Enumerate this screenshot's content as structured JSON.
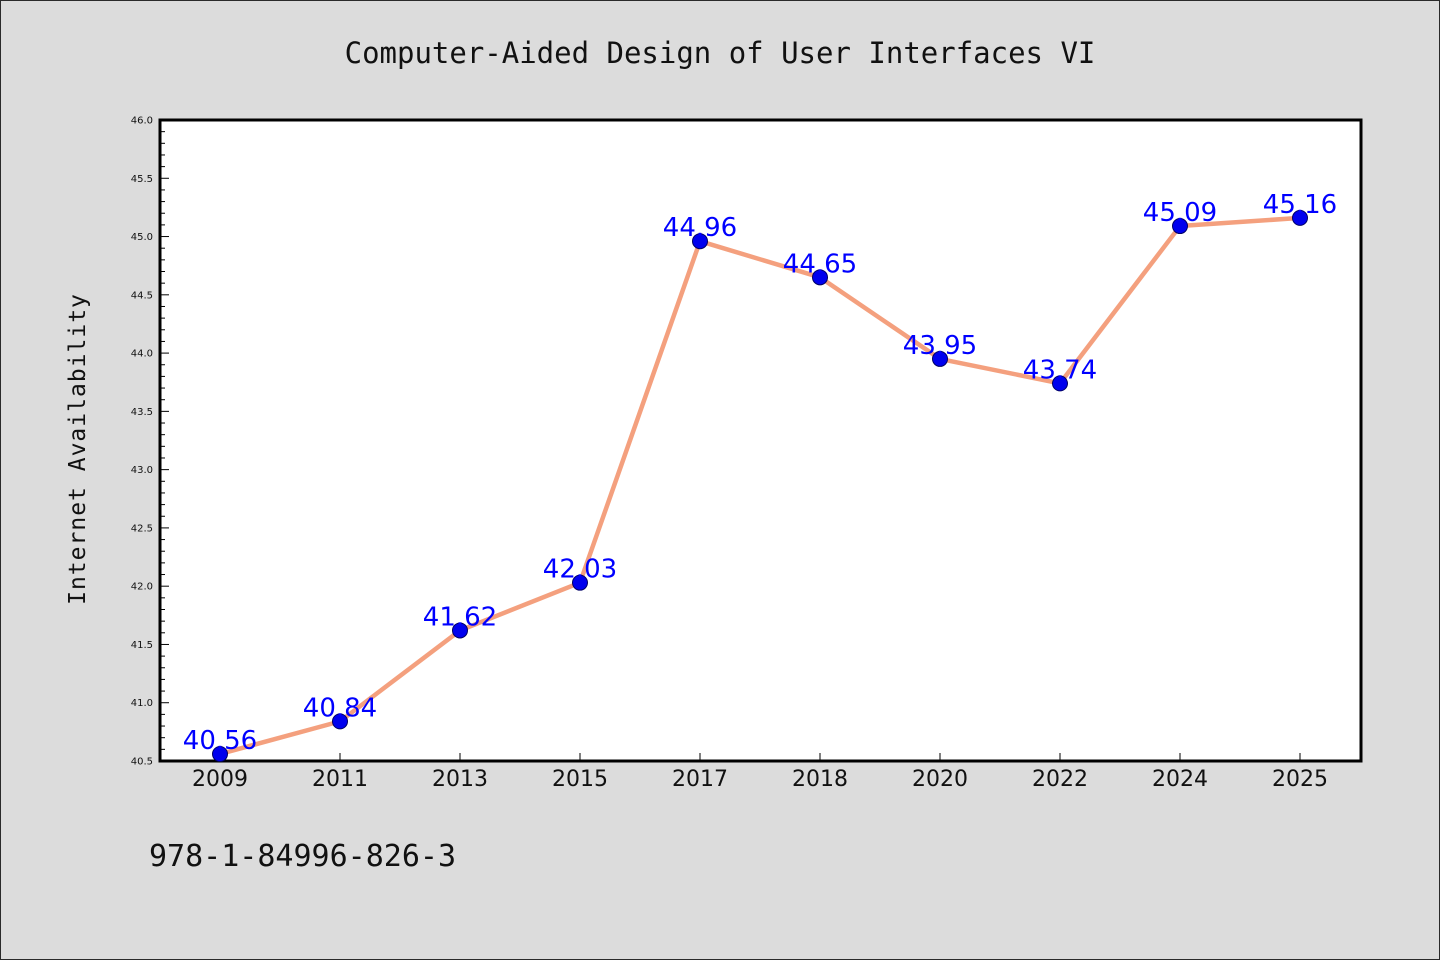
{
  "chart_data": {
    "type": "line",
    "title": "Computer-Aided Design of User Interfaces VI",
    "xlabel": "",
    "ylabel": "Internet Availability",
    "categories": [
      "2009",
      "2011",
      "2013",
      "2015",
      "2017",
      "2018",
      "2020",
      "2022",
      "2024",
      "2025"
    ],
    "values": [
      40.56,
      40.84,
      41.62,
      42.03,
      44.96,
      44.65,
      43.95,
      43.74,
      45.09,
      45.16
    ],
    "data_labels": [
      "40.56",
      "40.84",
      "41.62",
      "42.03",
      "44.96",
      "44.65",
      "43.95",
      "43.74",
      "45.09",
      "45.16"
    ],
    "ylim": [
      40.5,
      46.0
    ],
    "yticks": [
      "40.5",
      "41.0",
      "41.5",
      "42.0",
      "42.5",
      "43.0",
      "43.5",
      "44.0",
      "44.5",
      "45.0",
      "45.5",
      "46.0"
    ],
    "grid": false,
    "legend": "none",
    "colors": {
      "line": "#f4a07e",
      "marker": "#0000ee",
      "marker_edge": "#000066",
      "label": "#0000ff",
      "plot_background": "#ffffff",
      "figure_background": "#dcdcdc"
    }
  },
  "footer_text": "978-1-84996-826-3"
}
